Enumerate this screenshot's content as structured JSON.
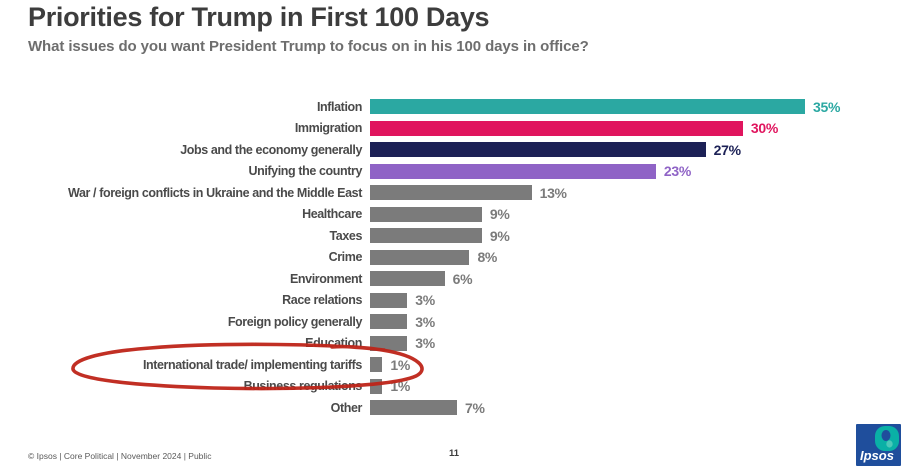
{
  "header": {
    "title": "Priorities for Trump in First 100 Days",
    "subtitle": "What issues do you want President Trump to focus on in his 100 days in office?"
  },
  "chart_data": {
    "type": "bar",
    "orientation": "horizontal",
    "title": "Priorities for Trump in First 100 Days",
    "xlabel": "",
    "ylabel": "",
    "xlim": [
      0,
      38
    ],
    "grid": false,
    "value_suffix": "%",
    "categories": [
      "Inflation",
      "Immigration",
      "Jobs and the economy generally",
      "Unifying the country",
      "War / foreign conflicts in Ukraine and the Middle East",
      "Healthcare",
      "Taxes",
      "Crime",
      "Environment",
      "Race relations",
      "Foreign policy generally",
      "Education",
      "International trade/ implementing tariffs",
      "Business regulations",
      "Other"
    ],
    "values": [
      35,
      30,
      27,
      23,
      13,
      9,
      9,
      8,
      6,
      3,
      3,
      3,
      1,
      1,
      7
    ],
    "value_labels": [
      "35%",
      "30%",
      "27%",
      "23%",
      "13%",
      "9%",
      "9%",
      "8%",
      "6%",
      "3%",
      "3%",
      "3%",
      "1%",
      "1%",
      "7%"
    ],
    "bar_colors": [
      "#2BA8A2",
      "#E0155E",
      "#1C2156",
      "#8F63C6",
      "#7B7B7B",
      "#7B7B7B",
      "#7B7B7B",
      "#7B7B7B",
      "#7B7B7B",
      "#7B7B7B",
      "#7B7B7B",
      "#7B7B7B",
      "#7B7B7B",
      "#7B7B7B",
      "#7B7B7B"
    ],
    "annotation": {
      "shape": "hand-drawn-ellipse",
      "target_category": "International trade/ implementing tariffs",
      "target_index": 12,
      "color": "#BE2418"
    }
  },
  "footer": {
    "source_line": "© Ipsos | Core Political | November 2024 | Public",
    "page_number": "11",
    "logo_text": "Ipsos"
  },
  "colors": {
    "teal": "#2BA8A2",
    "pink": "#E0155E",
    "navy": "#1C2156",
    "purple": "#8F63C6",
    "gray_bar": "#7B7B7B",
    "annotation_red": "#BE2418",
    "logo_blue": "#1F4E9C",
    "logo_teal": "#0AB0A6"
  }
}
